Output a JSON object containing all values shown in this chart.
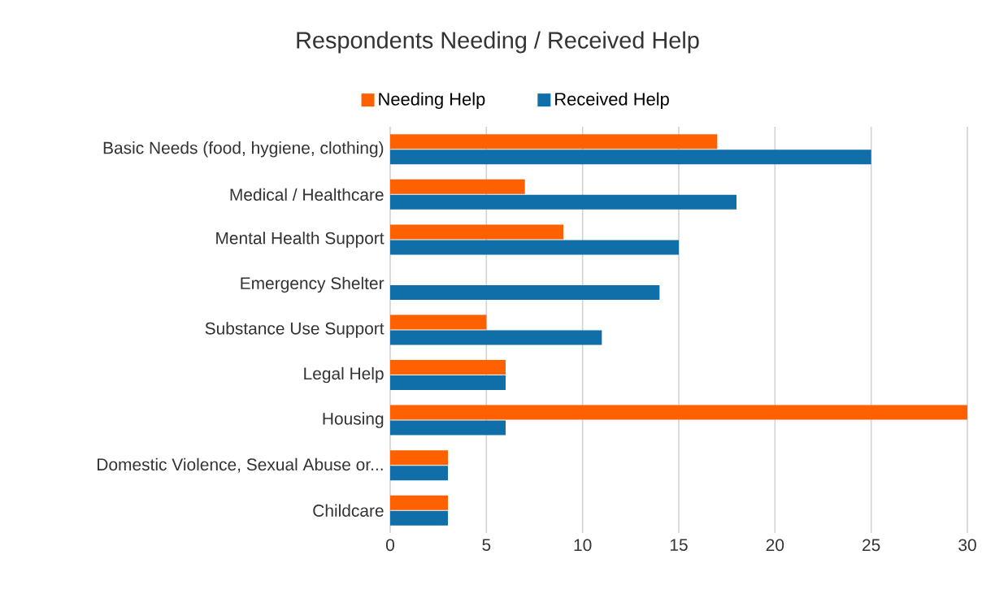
{
  "chart_data": {
    "type": "bar",
    "orientation": "horizontal",
    "title": "Respondents Needing / Received Help",
    "categories": [
      "Basic Needs (food, hygiene, clothing)",
      "Medical / Healthcare",
      "Mental Health Support",
      "Emergency Shelter",
      "Substance Use Support",
      "Legal Help",
      "Housing",
      "Domestic Violence, Sexual Abuse or...",
      "Childcare"
    ],
    "series": [
      {
        "name": "Needing Help",
        "color": "#ff6000",
        "values": [
          17,
          7,
          9,
          0,
          5,
          6,
          30,
          3,
          3
        ]
      },
      {
        "name": "Received Help",
        "color": "#106ea8",
        "values": [
          25,
          18,
          15,
          14,
          11,
          6,
          6,
          3,
          3
        ]
      }
    ],
    "xlim": [
      0,
      30
    ],
    "xticks": [
      0,
      5,
      10,
      15,
      20,
      25,
      30
    ],
    "grid": "x",
    "legend": "top"
  }
}
